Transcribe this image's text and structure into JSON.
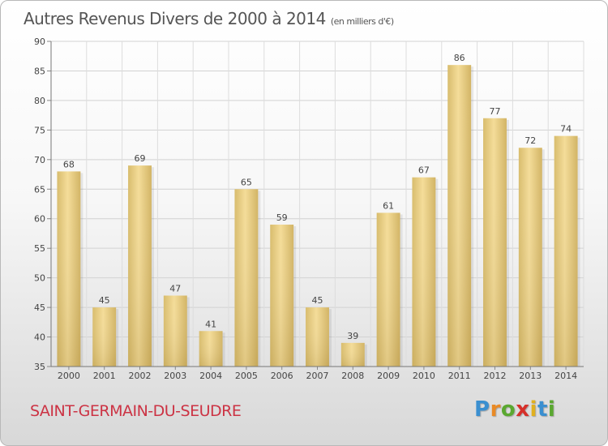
{
  "title": "Autres Revenus Divers de 2000 à 2014",
  "subtitle": "(en milliers d'€)",
  "commune": "SAINT-GERMAIN-DU-SEUDRE",
  "logo": {
    "letters": [
      "P",
      "r",
      "o",
      "x",
      "i",
      "t",
      "i"
    ],
    "colors": [
      "#3a8fd0",
      "#e98a25",
      "#5aa830",
      "#d6302a",
      "#e0b020",
      "#3a8fd0",
      "#5aa830"
    ]
  },
  "chart_data": {
    "type": "bar",
    "categories": [
      "2000",
      "2001",
      "2002",
      "2003",
      "2004",
      "2005",
      "2006",
      "2007",
      "2008",
      "2009",
      "2010",
      "2011",
      "2012",
      "2013",
      "2014"
    ],
    "values": [
      68,
      45,
      69,
      47,
      41,
      65,
      59,
      45,
      39,
      61,
      67,
      86,
      77,
      72,
      74
    ],
    "ylim": [
      35,
      90
    ],
    "yticks": [
      35,
      40,
      45,
      50,
      55,
      60,
      65,
      70,
      75,
      80,
      85,
      90
    ],
    "grid": true,
    "bar_color": "#e8cf88"
  }
}
